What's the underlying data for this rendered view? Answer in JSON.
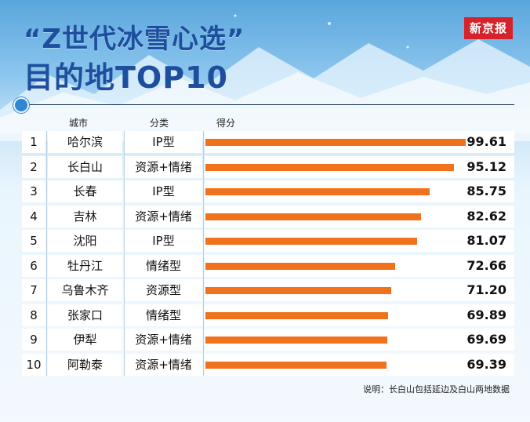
{
  "header": {
    "title_line1": "“Z世代冰雪心选”",
    "title_line2": "目的地TOP10",
    "logo_text": "新京报"
  },
  "colors": {
    "title": "#1d4f9e",
    "bar": "#f0721c",
    "logo_bg": "#d4232b",
    "accent_dot": "#2f86d2"
  },
  "chart_data": {
    "type": "bar",
    "orientation": "horizontal",
    "columns": [
      "城市",
      "分类",
      "得分"
    ],
    "ranks": [
      "1",
      "2",
      "3",
      "4",
      "5",
      "6",
      "7",
      "8",
      "9",
      "10"
    ],
    "categories": [
      "哈尔滨",
      "长白山",
      "长春",
      "吉林",
      "沈阳",
      "牡丹江",
      "乌鲁木齐",
      "张家口",
      "伊犁",
      "阿勒泰"
    ],
    "types": [
      "IP型",
      "资源+情绪",
      "IP型",
      "资源+情绪",
      "IP型",
      "情绪型",
      "资源型",
      "情绪型",
      "资源+情绪",
      "资源+情绪"
    ],
    "values": [
      99.61,
      95.12,
      85.75,
      82.62,
      81.07,
      72.66,
      71.2,
      69.89,
      69.69,
      69.39
    ],
    "value_labels": [
      "99.61",
      "95.12",
      "85.75",
      "82.62",
      "81.07",
      "72.66",
      "71.20",
      "69.89",
      "69.69",
      "69.39"
    ],
    "title": "",
    "xlabel": "",
    "ylabel": ""
  },
  "footnote": "说明：长白山包括延边及白山两地数据"
}
